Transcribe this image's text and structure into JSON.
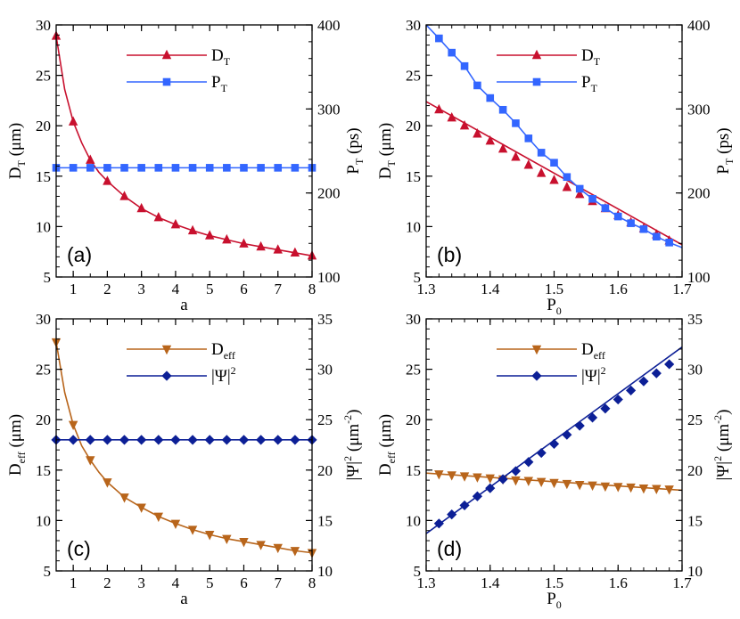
{
  "colors": {
    "red": "#c8102e",
    "blue": "#3366ff",
    "orange": "#b8651b",
    "navy": "#0c1f96"
  },
  "chart_data": [
    {
      "type": "line",
      "panel_label": "(a)",
      "xlabel": {
        "main": "a",
        "sub": ""
      },
      "ylabel_left": {
        "main": "D",
        "sub": "T",
        "unit": " (μm)"
      },
      "ylabel_right": {
        "main": "P",
        "sub": "T",
        "unit": " (ps)"
      },
      "xlim": [
        0.5,
        8
      ],
      "ylim_left": [
        5,
        30
      ],
      "ylim_right": [
        100,
        400
      ],
      "xticks": [
        1,
        2,
        3,
        4,
        5,
        6,
        7,
        8
      ],
      "xtick_labels": [
        "1",
        "2",
        "3",
        "4",
        "5",
        "6",
        "7",
        "8"
      ],
      "yticks_left": [
        5,
        10,
        15,
        20,
        25,
        30
      ],
      "ytick_labels_left": [
        "5",
        "10",
        "15",
        "20",
        "25",
        "30"
      ],
      "yticks_right": [
        100,
        200,
        300,
        400
      ],
      "ytick_labels_right": [
        "100",
        "200",
        "300",
        "400"
      ],
      "legend": [
        {
          "main": "D",
          "sub": "T",
          "color_key": "red",
          "marker": "triangle-up"
        },
        {
          "main": "P",
          "sub": "T",
          "color_key": "blue",
          "marker": "square"
        }
      ],
      "series": [
        {
          "name": "D_T",
          "axis": "left",
          "color_key": "red",
          "marker": "triangle-up",
          "x": [
            0.5,
            1,
            1.5,
            2,
            2.5,
            3,
            3.5,
            4,
            4.5,
            5,
            5.5,
            6,
            6.5,
            7,
            7.5,
            8
          ],
          "y": [
            28.9,
            20.4,
            16.6,
            14.5,
            13.0,
            11.8,
            10.9,
            10.2,
            9.6,
            9.1,
            8.7,
            8.3,
            8.0,
            7.7,
            7.4,
            7.1
          ],
          "line_x": [
            0.5,
            0.75,
            1,
            1.25,
            1.5,
            1.75,
            2,
            2.5,
            3,
            3.5,
            4,
            4.5,
            5,
            5.5,
            6,
            6.5,
            7,
            7.5,
            8
          ],
          "line_y": [
            28.9,
            23.6,
            20.4,
            18.3,
            16.6,
            15.4,
            14.5,
            13.0,
            11.8,
            10.9,
            10.2,
            9.6,
            9.1,
            8.7,
            8.3,
            8.0,
            7.7,
            7.4,
            7.1
          ]
        },
        {
          "name": "P_T",
          "axis": "right",
          "color_key": "blue",
          "marker": "square",
          "x": [
            0.5,
            1,
            1.5,
            2,
            2.5,
            3,
            3.5,
            4,
            4.5,
            5,
            5.5,
            6,
            6.5,
            7,
            7.5,
            8
          ],
          "y": [
            230,
            230,
            230,
            230,
            230,
            230,
            230,
            230,
            230,
            230,
            230,
            230,
            230,
            230,
            230,
            230
          ]
        }
      ]
    },
    {
      "type": "line",
      "panel_label": "(b)",
      "xlabel": {
        "main": "P",
        "sub": "0"
      },
      "ylabel_left": {
        "main": "D",
        "sub": "T",
        "unit": " (μm)"
      },
      "ylabel_right": {
        "main": "P",
        "sub": "T",
        "unit": " (ps)"
      },
      "xlim": [
        1.3,
        1.7
      ],
      "ylim_left": [
        5,
        30
      ],
      "ylim_right": [
        100,
        400
      ],
      "xticks": [
        1.3,
        1.4,
        1.5,
        1.6,
        1.7
      ],
      "xtick_labels": [
        "1.3",
        "1.4",
        "1.5",
        "1.6",
        "1.7"
      ],
      "yticks_left": [
        5,
        10,
        15,
        20,
        25,
        30
      ],
      "ytick_labels_left": [
        "5",
        "10",
        "15",
        "20",
        "25",
        "30"
      ],
      "yticks_right": [
        100,
        200,
        300,
        400
      ],
      "ytick_labels_right": [
        "100",
        "200",
        "300",
        "400"
      ],
      "legend": [
        {
          "main": "D",
          "sub": "T",
          "color_key": "red",
          "marker": "triangle-up"
        },
        {
          "main": "P",
          "sub": "T",
          "color_key": "blue",
          "marker": "square"
        }
      ],
      "series": [
        {
          "name": "D_T",
          "axis": "left",
          "color_key": "red",
          "marker": "triangle-up",
          "x": [
            1.32,
            1.34,
            1.36,
            1.38,
            1.4,
            1.42,
            1.44,
            1.46,
            1.48,
            1.5,
            1.52,
            1.54,
            1.56,
            1.58,
            1.6,
            1.62,
            1.64,
            1.66,
            1.68
          ],
          "y": [
            21.6,
            20.8,
            20.0,
            19.2,
            18.5,
            17.7,
            16.9,
            16.1,
            15.3,
            14.6,
            13.9,
            13.2,
            12.5,
            11.8,
            11.1,
            10.4,
            9.8,
            9.2,
            8.6
          ],
          "line_x": [
            1.3,
            1.7
          ],
          "line_y": [
            22.4,
            8.2
          ]
        },
        {
          "name": "P_T",
          "axis": "right",
          "color_key": "blue",
          "marker": "square",
          "x": [
            1.32,
            1.34,
            1.36,
            1.38,
            1.4,
            1.42,
            1.44,
            1.46,
            1.48,
            1.5,
            1.52,
            1.54,
            1.56,
            1.58,
            1.6,
            1.62,
            1.64,
            1.66,
            1.68
          ],
          "y": [
            384,
            367,
            351,
            328,
            313,
            299,
            283,
            265,
            248,
            236,
            219,
            205,
            193,
            182,
            172,
            164,
            157,
            148,
            141
          ],
          "line_x": [
            1.3,
            1.32,
            1.34,
            1.36,
            1.38,
            1.4,
            1.42,
            1.44,
            1.46,
            1.48,
            1.5,
            1.52,
            1.54,
            1.56,
            1.58,
            1.6,
            1.62,
            1.64,
            1.66,
            1.68,
            1.7
          ],
          "line_y": [
            400,
            384,
            367,
            351,
            328,
            313,
            299,
            283,
            265,
            248,
            236,
            219,
            205,
            193,
            182,
            172,
            164,
            157,
            148,
            141,
            135
          ]
        }
      ]
    },
    {
      "type": "line",
      "panel_label": "(c)",
      "xlabel": {
        "main": "a",
        "sub": ""
      },
      "ylabel_left": {
        "main": "D",
        "sub": "eff",
        "unit": " (μm)"
      },
      "ylabel_right": {
        "main": "|Ψ|",
        "sup": "2",
        "unit": " (μm",
        "unit_sup": "-2",
        "unit_end": ")"
      },
      "xlim": [
        0.5,
        8
      ],
      "ylim_left": [
        5,
        30
      ],
      "ylim_right": [
        10,
        35
      ],
      "xticks": [
        1,
        2,
        3,
        4,
        5,
        6,
        7,
        8
      ],
      "xtick_labels": [
        "1",
        "2",
        "3",
        "4",
        "5",
        "6",
        "7",
        "8"
      ],
      "yticks_left": [
        5,
        10,
        15,
        20,
        25,
        30
      ],
      "ytick_labels_left": [
        "5",
        "10",
        "15",
        "20",
        "25",
        "30"
      ],
      "yticks_right": [
        10,
        15,
        20,
        25,
        30,
        35
      ],
      "ytick_labels_right": [
        "10",
        "15",
        "20",
        "25",
        "30",
        "35"
      ],
      "legend": [
        {
          "main": "D",
          "sub": "eff",
          "color_key": "orange",
          "marker": "triangle-down"
        },
        {
          "main": "|Ψ|",
          "sup": "2",
          "color_key": "navy",
          "marker": "diamond"
        }
      ],
      "series": [
        {
          "name": "D_eff",
          "axis": "left",
          "color_key": "orange",
          "marker": "triangle-down",
          "x": [
            0.5,
            1,
            1.5,
            2,
            2.5,
            3,
            3.5,
            4,
            4.5,
            5,
            5.5,
            6,
            6.5,
            7,
            7.5,
            8
          ],
          "y": [
            27.7,
            19.5,
            16.0,
            13.8,
            12.3,
            11.3,
            10.4,
            9.7,
            9.1,
            8.6,
            8.2,
            7.9,
            7.6,
            7.3,
            7.0,
            6.8
          ],
          "line_x": [
            0.5,
            0.75,
            1,
            1.25,
            1.5,
            1.75,
            2,
            2.5,
            3,
            3.5,
            4,
            4.5,
            5,
            5.5,
            6,
            6.5,
            7,
            7.5,
            8
          ],
          "line_y": [
            27.7,
            22.7,
            19.5,
            17.4,
            16.0,
            14.8,
            13.8,
            12.3,
            11.3,
            10.4,
            9.7,
            9.1,
            8.6,
            8.2,
            7.9,
            7.6,
            7.3,
            7.0,
            6.8
          ]
        },
        {
          "name": "|Psi|^2",
          "axis": "right",
          "color_key": "navy",
          "marker": "diamond",
          "x": [
            0.5,
            1,
            1.5,
            2,
            2.5,
            3,
            3.5,
            4,
            4.5,
            5,
            5.5,
            6,
            6.5,
            7,
            7.5,
            8
          ],
          "y": [
            23,
            23,
            23,
            23,
            23,
            23,
            23,
            23,
            23,
            23,
            23,
            23,
            23,
            23,
            23,
            23
          ]
        }
      ]
    },
    {
      "type": "line",
      "panel_label": "(d)",
      "xlabel": {
        "main": "P",
        "sub": "0"
      },
      "ylabel_left": {
        "main": "D",
        "sub": "eff",
        "unit": " (μm)"
      },
      "ylabel_right": {
        "main": "|Ψ|",
        "sup": "2",
        "unit": " (μm",
        "unit_sup": "-2",
        "unit_end": ")"
      },
      "xlim": [
        1.3,
        1.7
      ],
      "ylim_left": [
        5,
        30
      ],
      "ylim_right": [
        10,
        35
      ],
      "xticks": [
        1.3,
        1.4,
        1.5,
        1.6,
        1.7
      ],
      "xtick_labels": [
        "1.3",
        "1.4",
        "1.5",
        "1.6",
        "1.7"
      ],
      "yticks_left": [
        5,
        10,
        15,
        20,
        25,
        30
      ],
      "ytick_labels_left": [
        "5",
        "10",
        "15",
        "20",
        "25",
        "30"
      ],
      "yticks_right": [
        10,
        15,
        20,
        25,
        30,
        35
      ],
      "ytick_labels_right": [
        "10",
        "15",
        "20",
        "25",
        "30",
        "35"
      ],
      "legend": [
        {
          "main": "D",
          "sub": "eff",
          "color_key": "orange",
          "marker": "triangle-down"
        },
        {
          "main": "|Ψ|",
          "sup": "2",
          "color_key": "navy",
          "marker": "diamond"
        }
      ],
      "series": [
        {
          "name": "D_eff",
          "axis": "left",
          "color_key": "orange",
          "marker": "triangle-down",
          "x": [
            1.32,
            1.34,
            1.36,
            1.38,
            1.4,
            1.42,
            1.44,
            1.46,
            1.48,
            1.5,
            1.52,
            1.54,
            1.56,
            1.58,
            1.6,
            1.62,
            1.64,
            1.66,
            1.68
          ],
          "y": [
            14.6,
            14.5,
            14.4,
            14.3,
            14.2,
            14.1,
            14.0,
            13.95,
            13.85,
            13.75,
            13.65,
            13.55,
            13.5,
            13.4,
            13.35,
            13.3,
            13.2,
            13.15,
            13.1
          ],
          "line_x": [
            1.3,
            1.7
          ],
          "line_y": [
            14.7,
            13.0
          ]
        },
        {
          "name": "|Psi|^2",
          "axis": "right",
          "color_key": "navy",
          "marker": "diamond",
          "x": [
            1.32,
            1.34,
            1.36,
            1.38,
            1.4,
            1.42,
            1.44,
            1.46,
            1.48,
            1.5,
            1.52,
            1.54,
            1.56,
            1.58,
            1.6,
            1.62,
            1.64,
            1.66,
            1.68
          ],
          "y": [
            14.7,
            15.6,
            16.5,
            17.4,
            18.2,
            19.1,
            19.9,
            20.8,
            21.7,
            22.6,
            23.5,
            24.4,
            25.2,
            26.1,
            27.0,
            27.9,
            28.8,
            29.6,
            30.5
          ],
          "line_x": [
            1.3,
            1.7
          ],
          "line_y": [
            13.7,
            32.2
          ]
        }
      ]
    }
  ]
}
